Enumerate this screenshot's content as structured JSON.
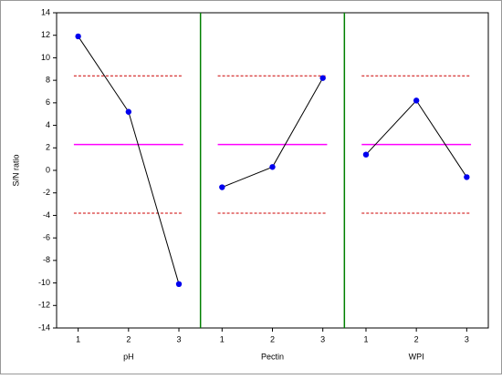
{
  "chart_data": {
    "type": "line",
    "y_label": "S/N ratio",
    "ylim": [
      -14,
      14
    ],
    "yticks": [
      -14,
      -12,
      -10,
      -8,
      -6,
      -4,
      -2,
      0,
      2,
      4,
      6,
      8,
      10,
      12,
      14
    ],
    "mean": 2.3,
    "mean_color": "#ff00ff",
    "limits": [
      8.4,
      -3.8
    ],
    "limit_color": "#cc0000",
    "line_color": "#000000",
    "marker_color": "#0000ee",
    "divider_color": "#008000",
    "panels": [
      {
        "name": "pH",
        "categories": [
          "1",
          "2",
          "3"
        ],
        "values": [
          11.9,
          5.2,
          -10.1
        ]
      },
      {
        "name": "Pectin",
        "categories": [
          "1",
          "2",
          "3"
        ],
        "values": [
          -1.5,
          0.3,
          8.2
        ]
      },
      {
        "name": "WPI",
        "categories": [
          "1",
          "2",
          "3"
        ],
        "values": [
          1.4,
          6.2,
          -0.6
        ]
      }
    ]
  }
}
